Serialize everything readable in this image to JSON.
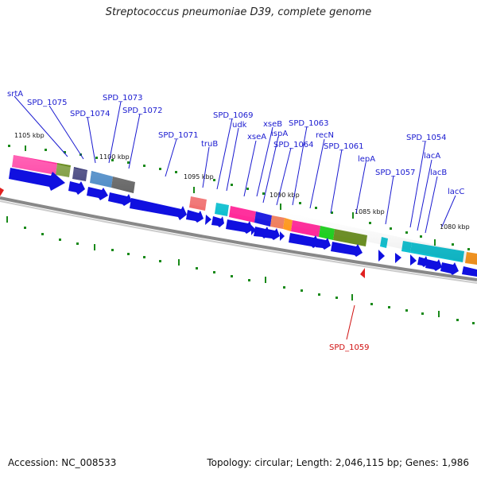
{
  "title": "Streptococcus pneumoniae D39, complete genome",
  "footer": {
    "accession": "Accession: NC_008533",
    "summary": "Topology: circular; Length: 2,046,115 bp; Genes: 1,986"
  },
  "colors": {
    "gene_arrow": "#1010e0",
    "label_blue": "#1a1ad0",
    "label_red": "#d01010",
    "tick_green": "#1a8a1a",
    "backbone": "#888888"
  },
  "kbp_marks": [
    {
      "label": "1105 kbp"
    },
    {
      "label": "1100 kbp"
    },
    {
      "label": "1095 kbp"
    },
    {
      "label": "1090 kbp"
    },
    {
      "label": "1085 kbp"
    },
    {
      "label": "1080 kbp"
    }
  ],
  "gene_labels": [
    {
      "name": "srtA"
    },
    {
      "name": "SPD_1075"
    },
    {
      "name": "SPD_1074"
    },
    {
      "name": "SPD_1073"
    },
    {
      "name": "SPD_1072"
    },
    {
      "name": "SPD_1071"
    },
    {
      "name": "truB"
    },
    {
      "name": "SPD_1069"
    },
    {
      "name": "udk"
    },
    {
      "name": "xseA"
    },
    {
      "name": "xseB"
    },
    {
      "name": "ispA"
    },
    {
      "name": "SPD_1064"
    },
    {
      "name": "SPD_1063"
    },
    {
      "name": "recN"
    },
    {
      "name": "SPD_1061"
    },
    {
      "name": "lepA"
    },
    {
      "name": "SPD_1057"
    },
    {
      "name": "SPD_1054"
    },
    {
      "name": "lacA"
    },
    {
      "name": "lacB"
    },
    {
      "name": "lacC"
    },
    {
      "name": "SPD_1059",
      "highlight": true
    }
  ]
}
